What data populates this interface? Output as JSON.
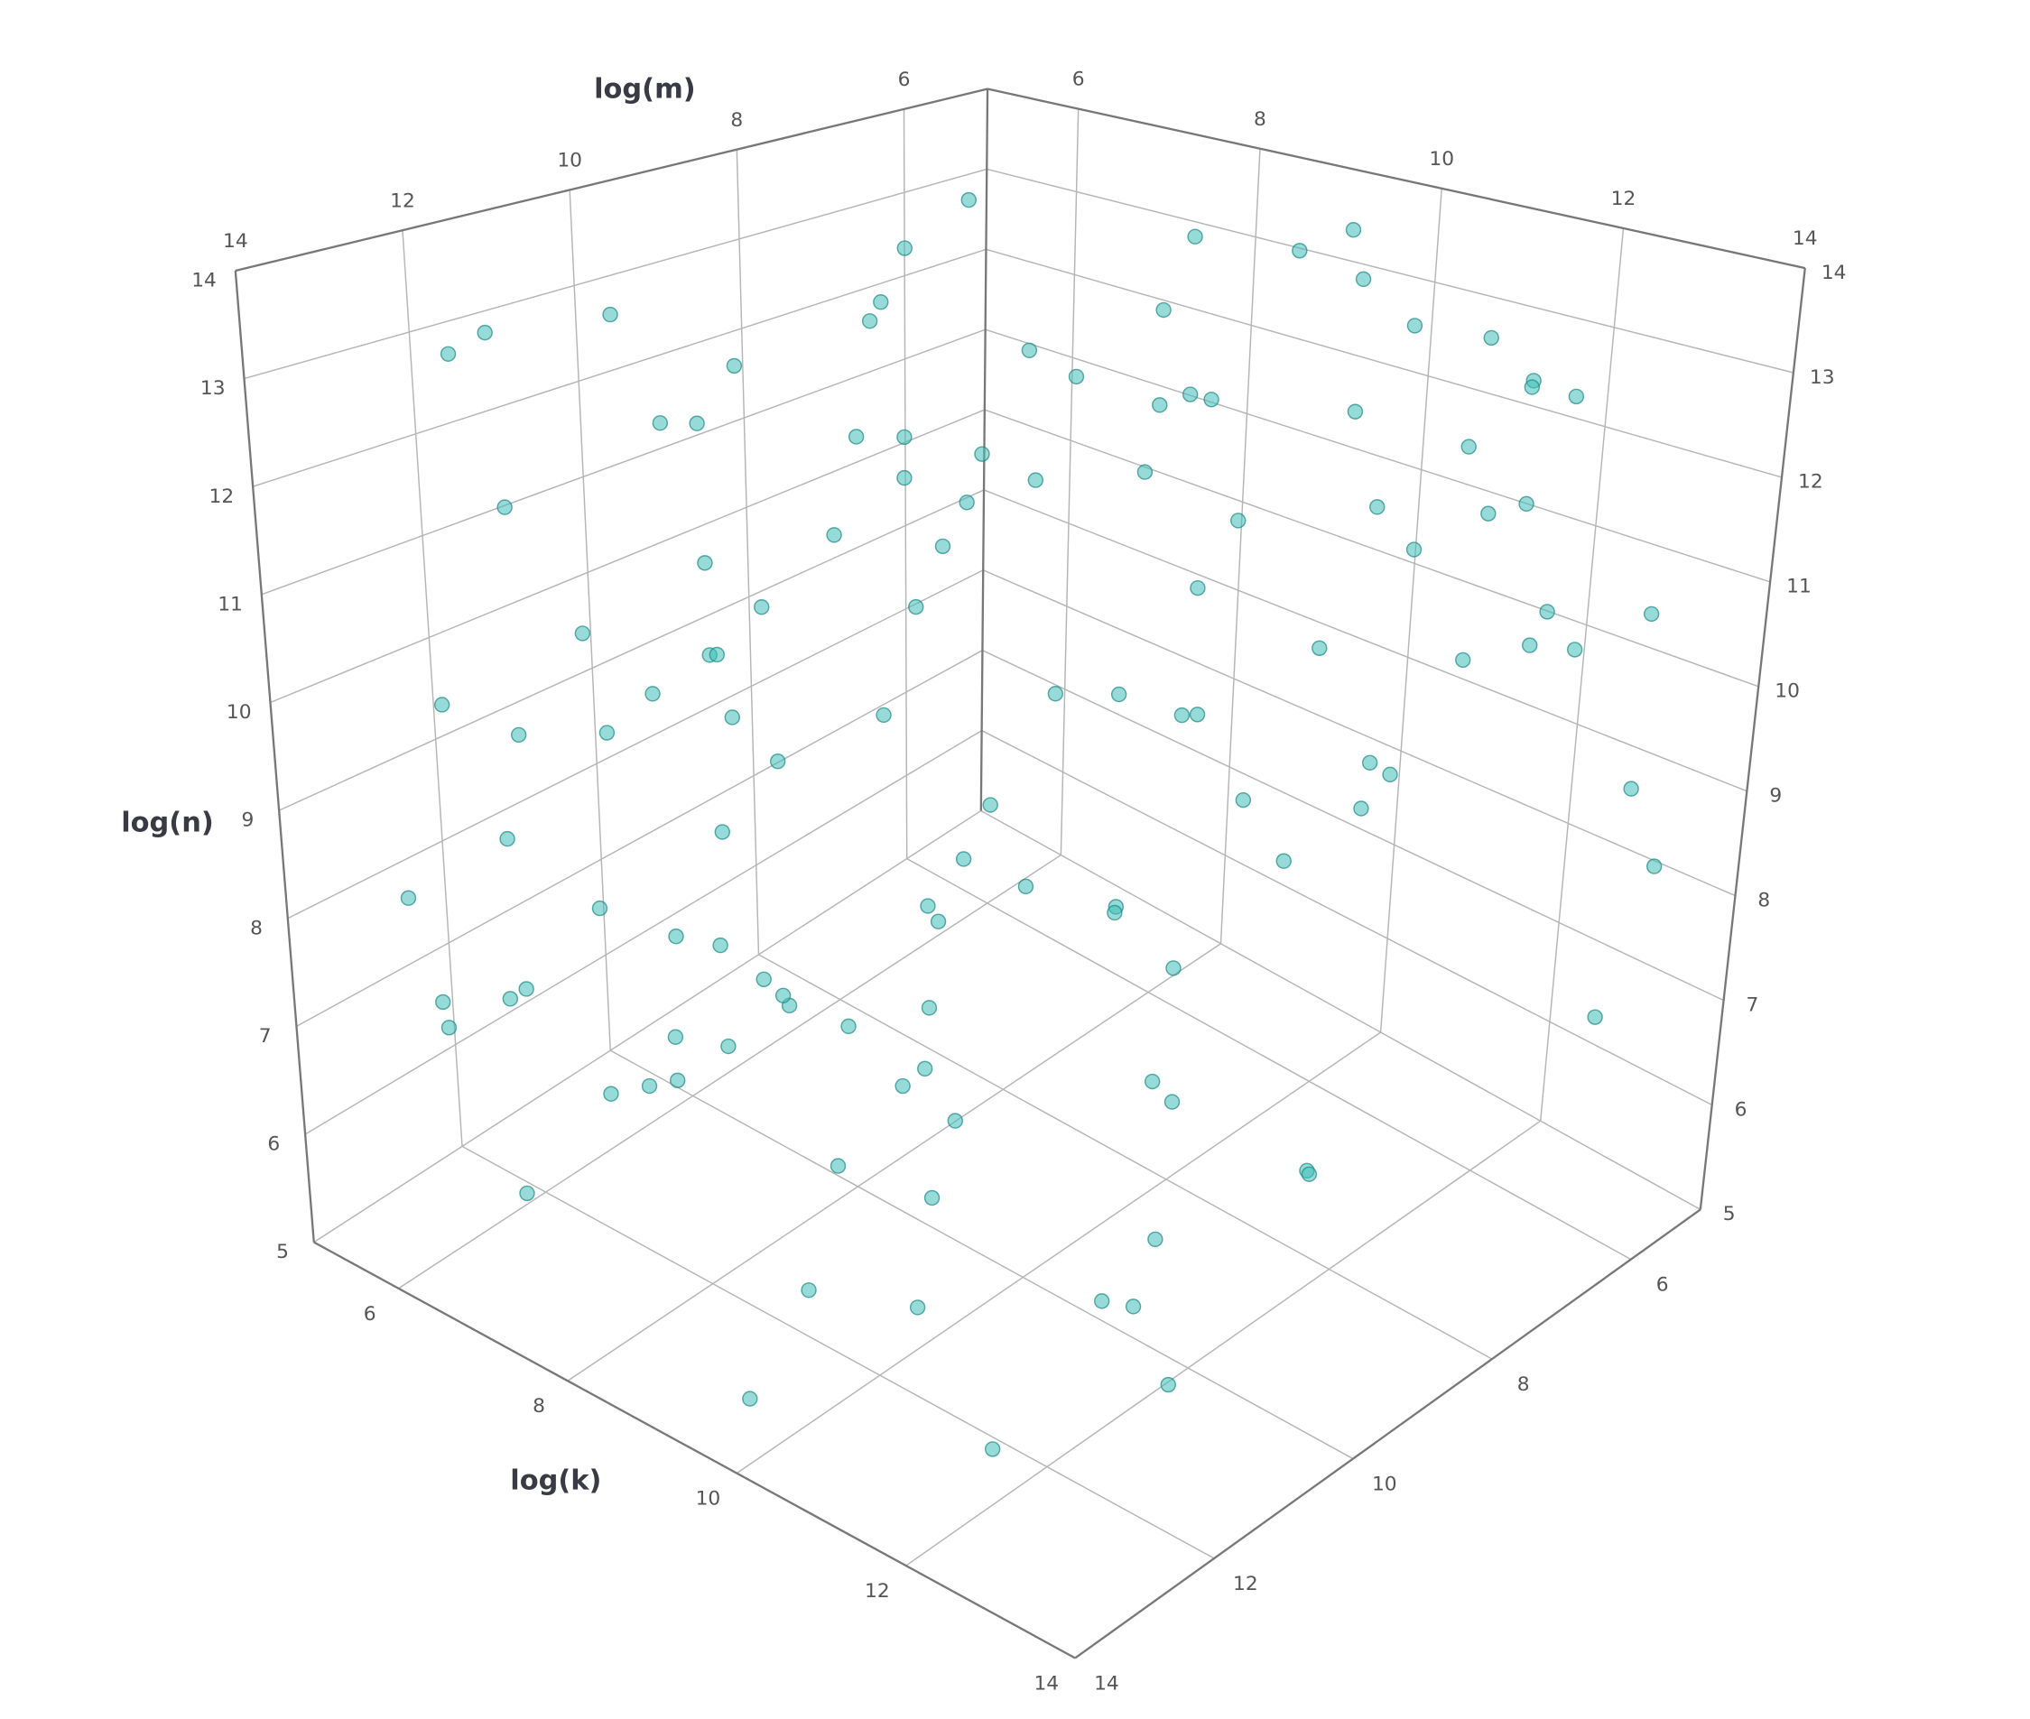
{
  "chart_data": {
    "type": "scatter3d",
    "xlabel": "log(k)",
    "ylabel": "log(m)",
    "zlabel": "log(n)",
    "xlim": [
      5,
      14
    ],
    "ylim": [
      5,
      14
    ],
    "zlim": [
      5,
      14
    ],
    "xticks": [
      6,
      8,
      10,
      12,
      14
    ],
    "yticks": [
      6,
      8,
      10,
      12,
      14
    ],
    "zticks": [
      5,
      6,
      7,
      8,
      9,
      10,
      11,
      12,
      13,
      14
    ],
    "grid": true,
    "series": [
      {
        "color": "#3fbdb8",
        "x": [
          6.2,
          7.8,
          9.1,
          10.4,
          11.7,
          12.9,
          5.8,
          8.3,
          13.1,
          6.9,
          10.8,
          7.1,
          12.2,
          9.6,
          5.6,
          11.3,
          8.8,
          13.4,
          6.5,
          10.1,
          7.4,
          12.6,
          9.9,
          5.9,
          11.0,
          8.1,
          13.7,
          6.8,
          10.6,
          7.9,
          12.1,
          9.3,
          5.7,
          11.9,
          8.6,
          13.0,
          6.3,
          10.2,
          7.6,
          12.8,
          9.0,
          5.5,
          11.4,
          8.9,
          13.3,
          6.1,
          10.9,
          7.2,
          12.4,
          9.7,
          6.6,
          11.6,
          8.2,
          13.6,
          5.9,
          10.5,
          7.7,
          12.0,
          9.4,
          6.0,
          11.1,
          8.5,
          13.2,
          6.7,
          10.0,
          7.3,
          12.7,
          9.2,
          5.8,
          11.8,
          8.0,
          13.5,
          6.4,
          10.7,
          7.5,
          12.3,
          9.8,
          6.2,
          11.5,
          8.7,
          13.8,
          5.7,
          10.3,
          7.0,
          12.5,
          9.5,
          6.9,
          11.2,
          8.4,
          13.1,
          6.1,
          10.9,
          7.8,
          12.2,
          9.0,
          5.6,
          11.7,
          8.3,
          13.4,
          6.5,
          10.4,
          7.2,
          12.9,
          9.6,
          6.0,
          11.0,
          8.8,
          13.0,
          6.8,
          10.1,
          7.4,
          12.6,
          9.3,
          5.9,
          11.3,
          8.1,
          13.6,
          6.3,
          10.6,
          7.9
        ],
        "y": [
          9.4,
          12.1,
          6.3,
          8.7,
          13.2,
          7.0,
          10.9,
          5.8,
          11.6,
          9.9,
          6.8,
          13.5,
          8.1,
          10.3,
          12.7,
          5.6,
          9.1,
          7.4,
          11.2,
          13.9,
          8.5,
          6.1,
          12.4,
          10.0,
          7.7,
          11.8,
          9.5,
          13.1,
          5.9,
          8.9,
          12.0,
          7.2,
          10.6,
          6.5,
          13.4,
          9.0,
          11.4,
          8.2,
          12.9,
          6.9,
          10.2,
          13.0,
          7.5,
          11.1,
          5.7,
          9.7,
          12.5,
          8.4,
          6.4,
          10.8,
          13.6,
          7.9,
          11.9,
          9.2,
          6.2,
          12.2,
          8.0,
          10.5,
          13.3,
          7.1,
          5.5,
          11.5,
          9.8,
          12.8,
          6.7,
          10.1,
          8.6,
          13.7,
          7.3,
          11.0,
          9.3,
          6.0,
          12.6,
          8.8,
          10.4,
          5.9,
          13.2,
          7.6,
          11.7,
          9.6,
          6.6,
          12.3,
          8.3,
          10.7,
          13.8,
          7.8,
          11.3,
          5.8,
          9.0,
          12.1,
          8.1,
          10.9,
          6.3,
          13.0,
          7.4,
          11.6,
          9.9,
          12.7,
          6.8,
          10.2,
          13.4,
          8.7,
          11.1,
          5.6,
          9.5,
          12.4,
          7.0,
          10.6,
          13.1,
          8.9,
          6.5,
          11.8,
          9.2,
          12.0,
          7.7,
          10.0,
          5.7,
          13.5,
          8.5,
          11.4
        ],
        "z": [
          12.3,
          8.1,
          10.6,
          6.4,
          9.8,
          13.1,
          7.2,
          11.5,
          5.9,
          10.2,
          13.6,
          7.8,
          9.3,
          12.0,
          6.7,
          11.1,
          8.6,
          10.9,
          13.3,
          5.6,
          9.9,
          12.7,
          6.9,
          11.8,
          8.3,
          7.1,
          10.4,
          9.0,
          12.9,
          6.2,
          11.3,
          13.8,
          8.8,
          10.1,
          7.5,
          12.4,
          5.8,
          9.6,
          11.0,
          13.0,
          6.6,
          8.0,
          12.6,
          7.3,
          10.7,
          9.4,
          6.1,
          13.5,
          11.7,
          8.4,
          10.3,
          5.7,
          9.1,
          12.2,
          13.2,
          7.7,
          11.4,
          6.3,
          8.9,
          10.8,
          12.8,
          9.7,
          7.0,
          11.9,
          13.7,
          6.5,
          10.0,
          8.2,
          12.1,
          5.9,
          11.6,
          9.2,
          13.4,
          7.6,
          6.8,
          10.5,
          8.7,
          12.5,
          9.5,
          11.2,
          7.4,
          13.0,
          6.0,
          10.9,
          8.5,
          12.3,
          9.8,
          11.8,
          7.9,
          6.7,
          10.1,
          12.6,
          8.3,
          5.6,
          11.4,
          9.1,
          13.3,
          7.2,
          10.7,
          12.0,
          6.4,
          8.8,
          11.1,
          13.6,
          9.3,
          7.0,
          12.9,
          10.3,
          5.8,
          8.0,
          11.7,
          9.6,
          13.1,
          6.9,
          10.4,
          12.2,
          8.4,
          7.5,
          11.0,
          9.9
        ]
      }
    ]
  }
}
